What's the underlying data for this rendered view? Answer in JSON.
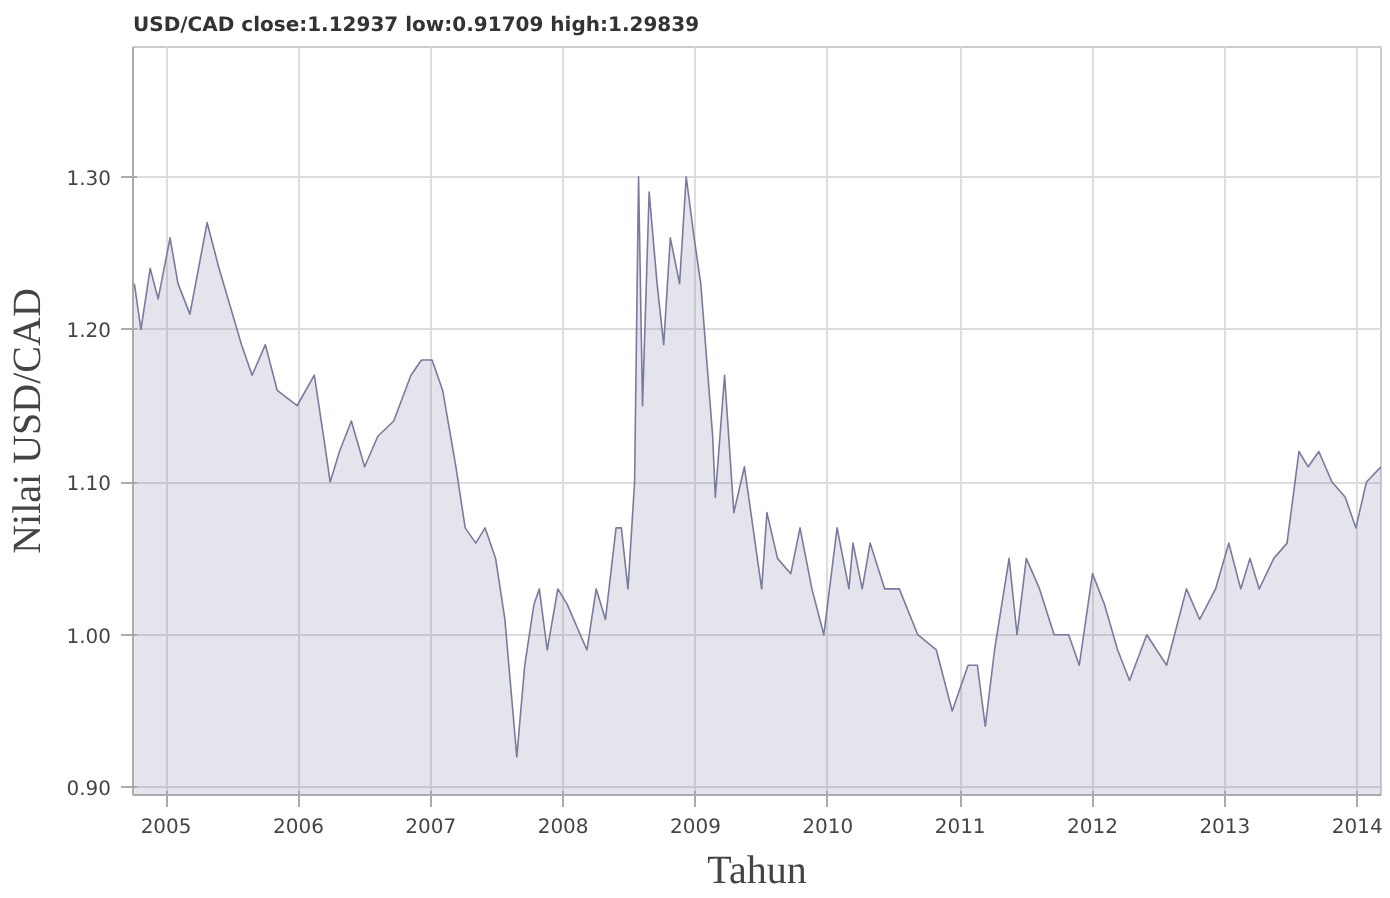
{
  "chart_data": {
    "type": "area",
    "title": "USD/CAD close:1.12937 low:0.91709 high:1.29839",
    "xlabel": "Tahun",
    "ylabel": "Nilai USD/CAD",
    "x": [
      2005.01,
      2005.06,
      2005.13,
      2005.19,
      2005.28,
      2005.34,
      2005.43,
      2005.56,
      2005.65,
      2005.82,
      2005.9,
      2006.0,
      2006.09,
      2006.24,
      2006.37,
      2006.44,
      2006.49,
      2006.56,
      2006.65,
      2006.75,
      2006.85,
      2006.97,
      2007.1,
      2007.18,
      2007.26,
      2007.34,
      2007.44,
      2007.51,
      2007.59,
      2007.66,
      2007.74,
      2007.81,
      2007.85,
      2007.9,
      2007.96,
      2008.03,
      2008.07,
      2008.13,
      2008.21,
      2008.28,
      2008.43,
      2008.5,
      2008.57,
      2008.65,
      2008.69,
      2008.74,
      2008.79,
      2008.82,
      2008.85,
      2008.9,
      2008.96,
      2009.01,
      2009.06,
      2009.13,
      2009.18,
      2009.24,
      2009.29,
      2009.38,
      2009.4,
      2009.47,
      2009.54,
      2009.62,
      2009.75,
      2009.79,
      2009.87,
      2009.97,
      2010.04,
      2010.13,
      2010.22,
      2010.32,
      2010.41,
      2010.44,
      2010.51,
      2010.57,
      2010.68,
      2010.79,
      2010.93,
      2011.07,
      2011.19,
      2011.31,
      2011.38,
      2011.44,
      2011.51,
      2011.62,
      2011.68,
      2011.75,
      2011.85,
      2011.96,
      2012.07,
      2012.15,
      2012.25,
      2012.34,
      2012.44,
      2012.53,
      2012.66,
      2012.81,
      2012.96,
      2013.06,
      2013.18,
      2013.28,
      2013.37,
      2013.44,
      2013.51,
      2013.62,
      2013.72,
      2013.81,
      2013.88,
      2013.96,
      2014.06,
      2014.16,
      2014.24,
      2014.32,
      2014.43
    ],
    "series": [
      {
        "color": "#7a7a9e",
        "values": [
          1.23,
          1.2,
          1.24,
          1.22,
          1.26,
          1.23,
          1.21,
          1.27,
          1.24,
          1.19,
          1.17,
          1.19,
          1.16,
          1.15,
          1.17,
          1.13,
          1.1,
          1.12,
          1.14,
          1.11,
          1.13,
          1.14,
          1.17,
          1.18,
          1.18,
          1.16,
          1.11,
          1.07,
          1.06,
          1.07,
          1.05,
          1.01,
          0.97,
          0.92,
          0.98,
          1.02,
          1.03,
          0.99,
          1.03,
          1.02,
          0.99,
          1.03,
          1.01,
          1.07,
          1.07,
          1.03,
          1.1,
          1.3,
          1.15,
          1.29,
          1.23,
          1.19,
          1.26,
          1.23,
          1.3,
          1.26,
          1.23,
          1.13,
          1.09,
          1.17,
          1.08,
          1.11,
          1.03,
          1.08,
          1.05,
          1.04,
          1.07,
          1.03,
          1.0,
          1.07,
          1.03,
          1.06,
          1.03,
          1.06,
          1.03,
          1.03,
          1.0,
          0.99,
          0.95,
          0.98,
          0.98,
          0.94,
          0.99,
          1.05,
          1.0,
          1.05,
          1.03,
          1.0,
          1.0,
          0.98,
          1.04,
          1.02,
          0.99,
          0.97,
          1.0,
          0.98,
          1.03,
          1.01,
          1.03,
          1.06,
          1.03,
          1.05,
          1.03,
          1.05,
          1.06,
          1.12,
          1.11,
          1.12,
          1.1,
          1.09,
          1.07,
          1.1,
          1.11
        ]
      }
    ],
    "xlim": [
      2005.0,
      2014.43
    ],
    "ylim": [
      0.895,
      1.385
    ],
    "xticks": [
      {
        "value": 2005.25,
        "label": "2005"
      },
      {
        "value": 2006.25,
        "label": "2006"
      },
      {
        "value": 2007.25,
        "label": "2007"
      },
      {
        "value": 2008.25,
        "label": "2008"
      },
      {
        "value": 2009.25,
        "label": "2009"
      },
      {
        "value": 2010.25,
        "label": "2010"
      },
      {
        "value": 2011.25,
        "label": "2011"
      },
      {
        "value": 2012.25,
        "label": "2012"
      },
      {
        "value": 2013.25,
        "label": "2013"
      },
      {
        "value": 2014.25,
        "label": "2014"
      }
    ],
    "yticks": [
      {
        "value": 0.9,
        "label": "0.90"
      },
      {
        "value": 1.0,
        "label": "1.00"
      },
      {
        "value": 1.1,
        "label": "1.10"
      },
      {
        "value": 1.2,
        "label": "1.20"
      },
      {
        "value": 1.3,
        "label": "1.30"
      }
    ],
    "grid": true,
    "marker": "none",
    "line_style": "solid"
  }
}
